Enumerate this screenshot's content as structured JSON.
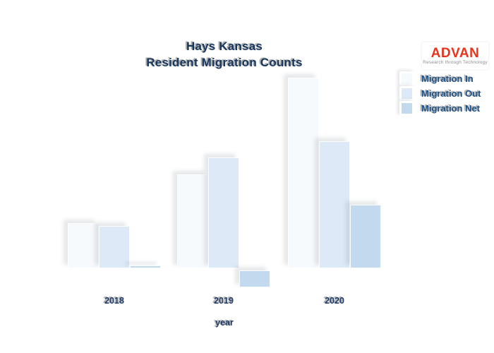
{
  "page": {
    "background": "#ffffff"
  },
  "title": {
    "line1": "Hays Kansas",
    "line2": "Resident Migration Counts",
    "color": "#17365d"
  },
  "logo": {
    "text": "ADVAN",
    "tagline": "Research through Technology",
    "text_color": "#e8341c",
    "tagline_color": "#8d8d8d"
  },
  "legend": {
    "position": "upper right",
    "label_color": "#1d5186",
    "items": [
      {
        "label": "Migration In",
        "color": "#f7fafd"
      },
      {
        "label": "Migration Out",
        "color": "#dde9f6"
      },
      {
        "label": "Migration Net",
        "color": "#c3d9ee"
      }
    ]
  },
  "x_axis": {
    "label": "year",
    "tick_labels": [
      "2018",
      "2019",
      "2020"
    ],
    "tick_color": "#1e3a66"
  },
  "chart_data": {
    "type": "bar",
    "title": "Hays Kansas Resident Migration Counts",
    "categories": [
      "2018",
      "2019",
      "2020"
    ],
    "series": [
      {
        "name": "Migration In",
        "color": "#f7fafd",
        "values": [
          64,
          133,
          270
        ]
      },
      {
        "name": "Migration Out",
        "color": "#dde9f6",
        "values": [
          60,
          157,
          180
        ]
      },
      {
        "name": "Migration Net",
        "color": "#c3d9ee",
        "values": [
          4,
          -24,
          90
        ]
      }
    ],
    "xlabel": "year",
    "ylabel": "",
    "ylim": [
      -30,
      280
    ],
    "grid": false,
    "y_axis_shown": false,
    "legend_position": "upper right"
  }
}
